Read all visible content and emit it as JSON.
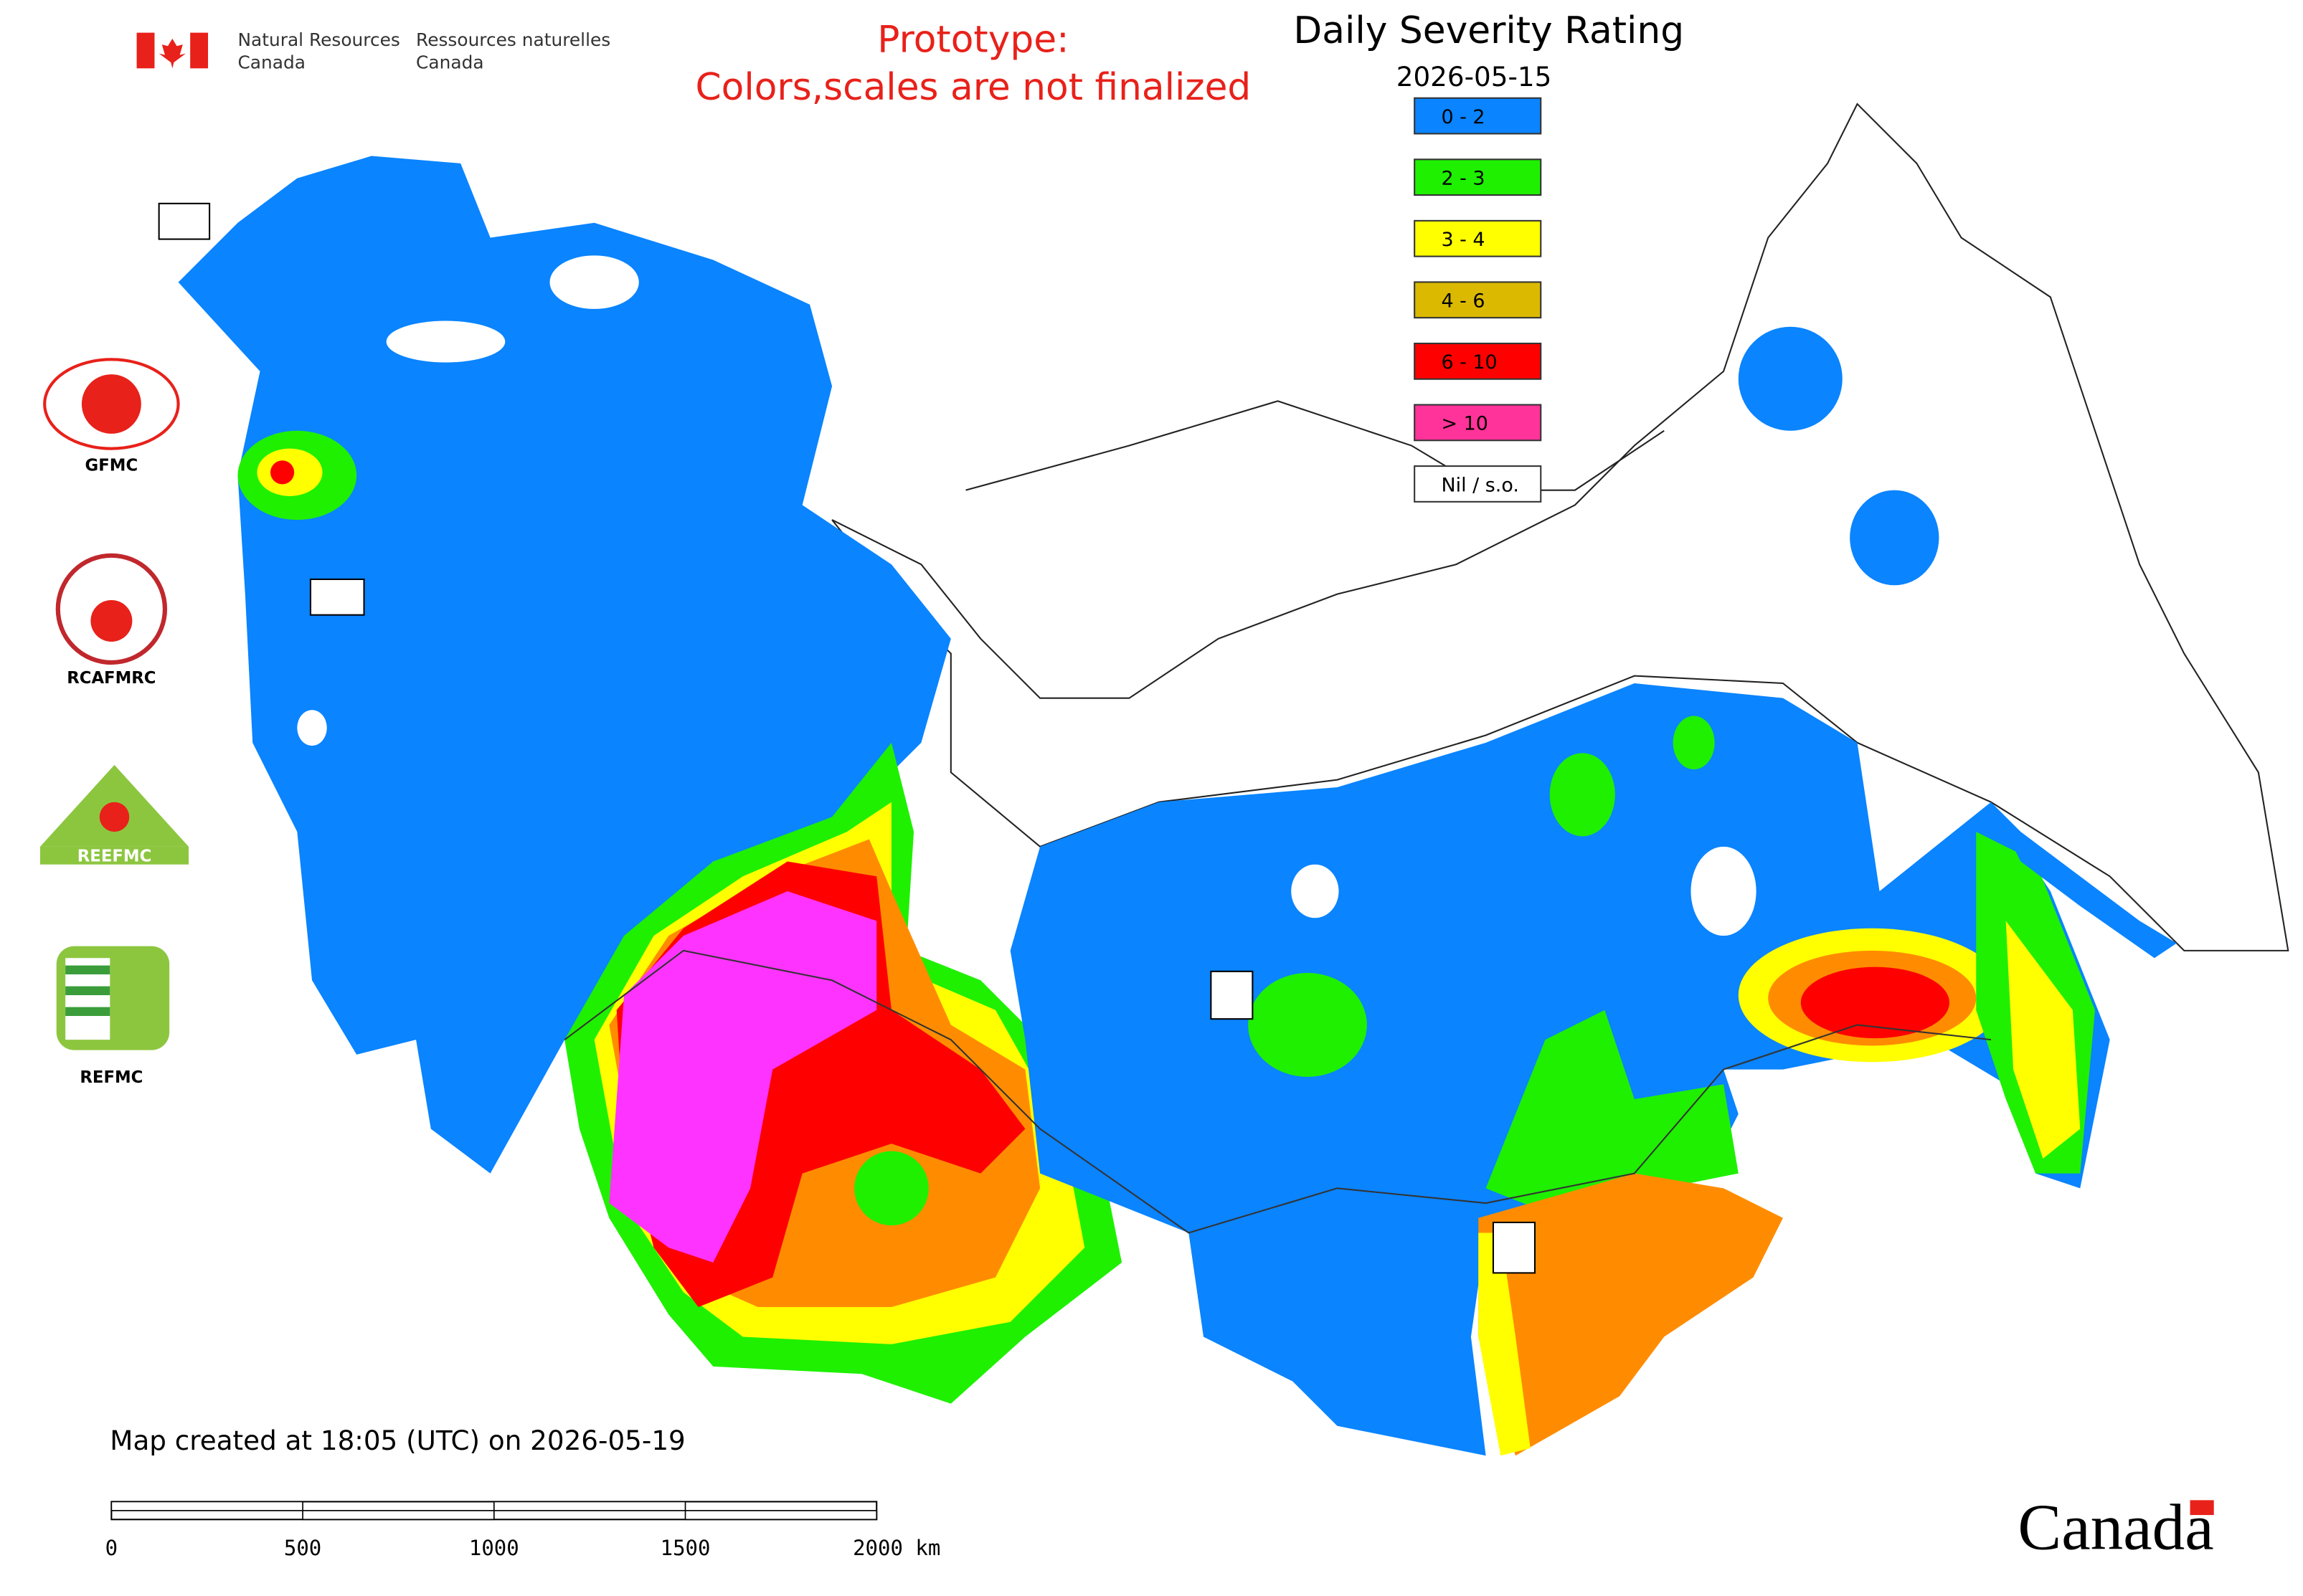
{
  "header": {
    "agency_en_1": "Natural Resources",
    "agency_en_2": "Canada",
    "agency_fr_1": "Ressources naturelles",
    "agency_fr_2": "Canada"
  },
  "notice": {
    "line1": "Prototype:",
    "line2": "Colors,scales are not finalized"
  },
  "legend": {
    "title": "Daily Severity Rating",
    "date": "2026-05-15",
    "items": [
      {
        "label": "0 - 2",
        "color": "#0a84ff"
      },
      {
        "label": "2 - 3",
        "color": "#1ef000"
      },
      {
        "label": "3 - 4",
        "color": "#ffff00"
      },
      {
        "label": "4 - 6",
        "color": "#dbb900"
      },
      {
        "label": "6 - 10",
        "color": "#ff0000"
      },
      {
        "label": "> 10",
        "color": "#ff3399"
      },
      {
        "label": "Nil / s.o.",
        "color": "#ffffff"
      }
    ]
  },
  "logos": [
    {
      "label": "GFMC"
    },
    {
      "label": "RCAFMRC"
    },
    {
      "label": "REEFMC"
    },
    {
      "label": "REFMC"
    }
  ],
  "footer": {
    "created": "Map created at 18:05 (UTC) on 2026-05-19",
    "wordmark": "Canada"
  },
  "scale_bar": {
    "labels": [
      "0",
      "500",
      "1000",
      "1500",
      "2000 km"
    ]
  }
}
